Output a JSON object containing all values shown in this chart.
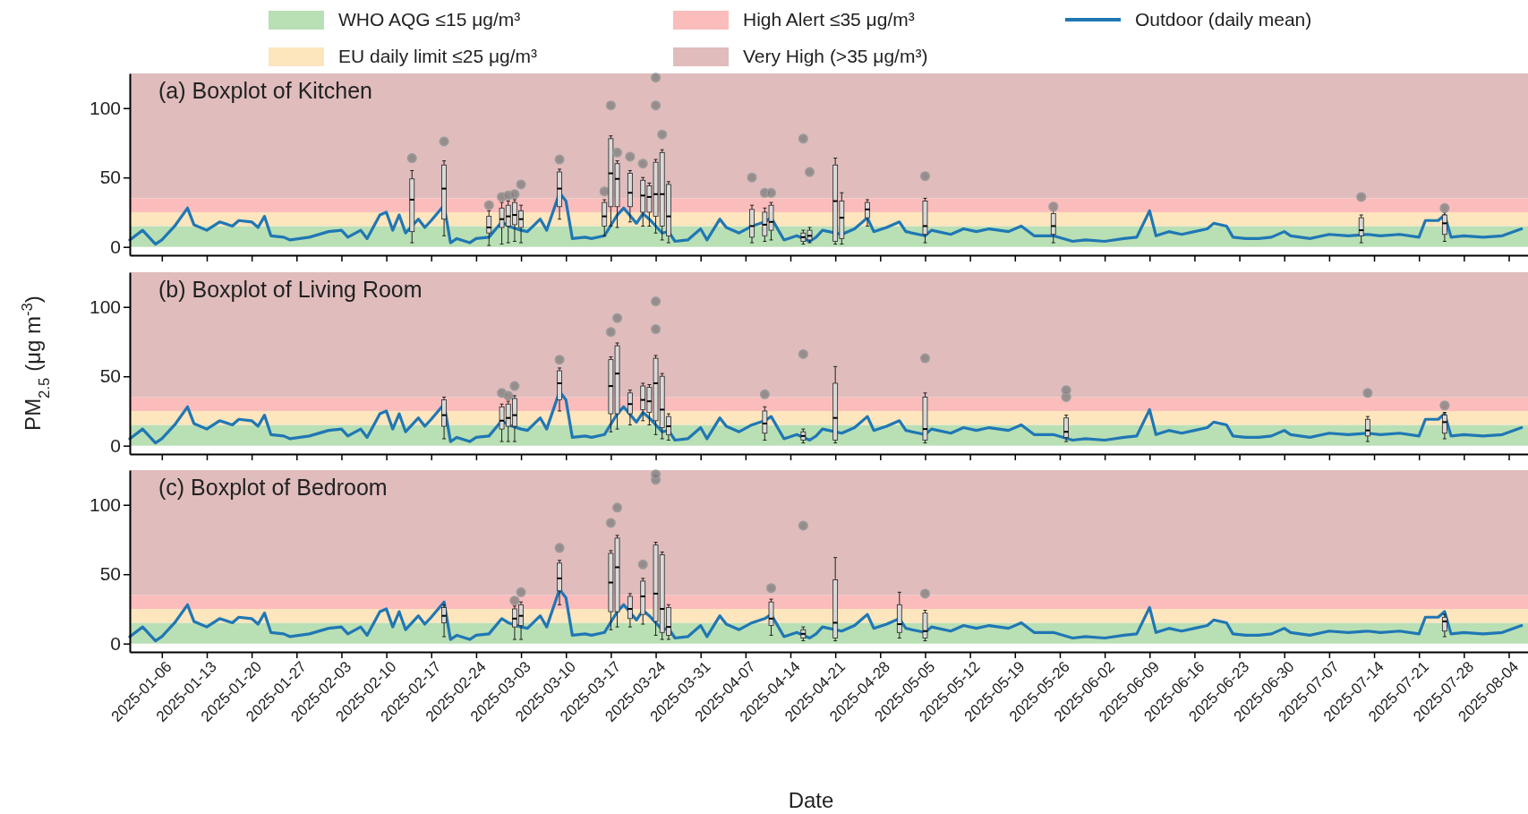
{
  "chart_data": [
    {
      "type": "box",
      "title": "(a) Boxplot of Kitchen",
      "xlim": [
        "2025-01-01",
        "2025-08-07"
      ],
      "xticks": [
        "2025-01-06",
        "2025-01-13",
        "2025-01-20",
        "2025-01-27",
        "2025-02-03",
        "2025-02-10",
        "2025-02-17",
        "2025-02-24",
        "2025-03-03",
        "2025-03-10",
        "2025-03-17",
        "2025-03-24",
        "2025-03-31",
        "2025-04-07",
        "2025-04-14",
        "2025-04-21",
        "2025-04-28",
        "2025-05-05",
        "2025-05-12",
        "2025-05-19",
        "2025-05-26",
        "2025-06-02",
        "2025-06-09",
        "2025-06-16",
        "2025-06-23",
        "2025-06-30",
        "2025-07-07",
        "2025-07-14",
        "2025-07-21",
        "2025-07-28",
        "2025-08-04"
      ],
      "ylim": [
        -6,
        125
      ],
      "yticks": [
        0,
        50,
        100
      ],
      "tick_labels": "y",
      "legend": "top",
      "bands": [
        {
          "axis": "y",
          "from": 0,
          "to": 15,
          "label": "WHO AQG ≤15 μg/m³",
          "color": "#b9dfb5"
        },
        {
          "axis": "y",
          "from": 15,
          "to": 25,
          "label": "EU daily limit ≤25 μg/m³",
          "color": "#fde5bd"
        },
        {
          "axis": "y",
          "from": 25,
          "to": 35,
          "label": "High Alert ≤35 μg/m³",
          "color": "#fbbcbc"
        },
        {
          "axis": "y",
          "from": 35,
          "to": 125,
          "label": "Very High (>35 μg/m³)",
          "color": "#e0bcbc"
        }
      ],
      "series": [
        {
          "color": "#d9d9d9",
          "x": [
            "2025-02-14",
            "2025-02-19",
            "2025-02-26",
            "2025-02-28",
            "2025-03-01",
            "2025-03-02",
            "2025-03-03",
            "2025-03-09",
            "2025-03-16",
            "2025-03-17",
            "2025-03-18",
            "2025-03-20",
            "2025-03-22",
            "2025-03-23",
            "2025-03-24",
            "2025-03-25",
            "2025-03-26",
            "2025-04-08",
            "2025-04-10",
            "2025-04-11",
            "2025-04-16",
            "2025-04-17",
            "2025-04-21",
            "2025-04-22",
            "2025-04-26",
            "2025-05-05",
            "2025-05-25",
            "2025-07-12",
            "2025-07-25"
          ],
          "boxes": [
            {
              "low": 3,
              "q1": 11,
              "median": 34,
              "q3": 49,
              "high": 55,
              "outliers": [
                64
              ]
            },
            {
              "low": 8,
              "q1": 20,
              "median": 42,
              "q3": 59,
              "high": 62,
              "outliers": [
                76
              ]
            },
            {
              "low": 1,
              "q1": 10,
              "median": 14,
              "q3": 22,
              "high": 26,
              "outliers": [
                30
              ]
            },
            {
              "low": 2,
              "q1": 14,
              "median": 20,
              "q3": 28,
              "high": 32,
              "outliers": [
                36
              ]
            },
            {
              "low": 3,
              "q1": 15,
              "median": 22,
              "q3": 30,
              "high": 33,
              "outliers": [
                37
              ]
            },
            {
              "low": 4,
              "q1": 16,
              "median": 23,
              "q3": 32,
              "high": 34,
              "outliers": [
                38
              ]
            },
            {
              "low": 3,
              "q1": 14,
              "median": 20,
              "q3": 26,
              "high": 30,
              "outliers": [
                45
              ]
            },
            {
              "low": 20,
              "q1": 29,
              "median": 42,
              "q3": 54,
              "high": 56,
              "outliers": [
                63
              ]
            },
            {
              "low": 8,
              "q1": 15,
              "median": 22,
              "q3": 32,
              "high": 34,
              "outliers": [
                40
              ]
            },
            {
              "low": 15,
              "q1": 29,
              "median": 53,
              "q3": 78,
              "high": 80,
              "outliers": [
                102
              ]
            },
            {
              "low": 14,
              "q1": 29,
              "median": 49,
              "q3": 60,
              "high": 62,
              "outliers": [
                68
              ]
            },
            {
              "low": 18,
              "q1": 29,
              "median": 39,
              "q3": 53,
              "high": 55,
              "outliers": [
                65
              ]
            },
            {
              "low": 15,
              "q1": 25,
              "median": 37,
              "q3": 48,
              "high": 50,
              "outliers": [
                60
              ]
            },
            {
              "low": 15,
              "q1": 25,
              "median": 36,
              "q3": 44,
              "high": 46
            },
            {
              "low": 10,
              "q1": 22,
              "median": 38,
              "q3": 61,
              "high": 63,
              "outliers": [
                102,
                122
              ]
            },
            {
              "low": 5,
              "q1": 15,
              "median": 38,
              "q3": 68,
              "high": 70,
              "outliers": [
                81
              ]
            },
            {
              "low": 3,
              "q1": 8,
              "median": 22,
              "q3": 45,
              "high": 47
            },
            {
              "low": 3,
              "q1": 7,
              "median": 15,
              "q3": 27,
              "high": 30,
              "outliers": [
                50
              ]
            },
            {
              "low": 4,
              "q1": 8,
              "median": 16,
              "q3": 25,
              "high": 28,
              "outliers": [
                39
              ]
            },
            {
              "low": 5,
              "q1": 12,
              "median": 18,
              "q3": 30,
              "high": 32,
              "outliers": [
                39
              ]
            },
            {
              "low": 2,
              "q1": 4,
              "median": 7,
              "q3": 10,
              "high": 12,
              "outliers": [
                78
              ]
            },
            {
              "low": 3,
              "q1": 5,
              "median": 8,
              "q3": 12,
              "high": 14,
              "outliers": [
                54
              ]
            },
            {
              "low": 2,
              "q1": 4,
              "median": 33,
              "q3": 59,
              "high": 64
            },
            {
              "low": 2,
              "q1": 6,
              "median": 21,
              "q3": 33,
              "high": 39
            },
            {
              "low": 15,
              "q1": 21,
              "median": 27,
              "q3": 32,
              "high": 34
            },
            {
              "low": 3,
              "q1": 9,
              "median": 15,
              "q3": 33,
              "high": 35,
              "outliers": [
                51
              ]
            },
            {
              "low": 3,
              "q1": 9,
              "median": 15,
              "q3": 24,
              "high": 26,
              "outliers": [
                29
              ]
            },
            {
              "low": 3,
              "q1": 8,
              "median": 12,
              "q3": 21,
              "high": 23,
              "outliers": [
                36
              ]
            },
            {
              "low": 4,
              "q1": 9,
              "median": 17,
              "q3": 23,
              "high": 25,
              "outliers": [
                28
              ]
            }
          ]
        },
        {
          "type": "line",
          "name": "Outdoor (daily mean)",
          "color": "#1f77b4",
          "x": [
            "2025-01-01",
            "2025-01-03",
            "2025-01-05",
            "2025-01-06",
            "2025-01-08",
            "2025-01-10",
            "2025-01-11",
            "2025-01-13",
            "2025-01-15",
            "2025-01-17",
            "2025-01-18",
            "2025-01-20",
            "2025-01-21",
            "2025-01-22",
            "2025-01-23",
            "2025-01-25",
            "2025-01-26",
            "2025-01-29",
            "2025-02-01",
            "2025-02-03",
            "2025-02-04",
            "2025-02-06",
            "2025-02-07",
            "2025-02-09",
            "2025-02-10",
            "2025-02-11",
            "2025-02-12",
            "2025-02-13",
            "2025-02-15",
            "2025-02-16",
            "2025-02-17",
            "2025-02-19",
            "2025-02-20",
            "2025-02-21",
            "2025-02-23",
            "2025-02-24",
            "2025-02-26",
            "2025-02-28",
            "2025-03-01",
            "2025-03-03",
            "2025-03-04",
            "2025-03-06",
            "2025-03-07",
            "2025-03-09",
            "2025-03-10",
            "2025-03-11",
            "2025-03-13",
            "2025-03-14",
            "2025-03-16",
            "2025-03-18",
            "2025-03-19",
            "2025-03-21",
            "2025-03-22",
            "2025-03-23",
            "2025-03-25",
            "2025-03-26",
            "2025-03-27",
            "2025-03-29",
            "2025-03-31",
            "2025-04-01",
            "2025-04-03",
            "2025-04-04",
            "2025-04-06",
            "2025-04-08",
            "2025-04-10",
            "2025-04-11",
            "2025-04-13",
            "2025-04-15",
            "2025-04-17",
            "2025-04-18",
            "2025-04-19",
            "2025-04-22",
            "2025-04-24",
            "2025-04-26",
            "2025-04-27",
            "2025-04-29",
            "2025-05-01",
            "2025-05-02",
            "2025-05-05",
            "2025-05-06",
            "2025-05-09",
            "2025-05-11",
            "2025-05-13",
            "2025-05-15",
            "2025-05-18",
            "2025-05-20",
            "2025-05-22",
            "2025-05-25",
            "2025-05-28",
            "2025-05-30",
            "2025-06-02",
            "2025-06-05",
            "2025-06-07",
            "2025-06-09",
            "2025-06-10",
            "2025-06-12",
            "2025-06-14",
            "2025-06-16",
            "2025-06-18",
            "2025-06-19",
            "2025-06-21",
            "2025-06-22",
            "2025-06-24",
            "2025-06-26",
            "2025-06-28",
            "2025-06-30",
            "2025-07-01",
            "2025-07-04",
            "2025-07-07",
            "2025-07-10",
            "2025-07-13",
            "2025-07-15",
            "2025-07-18",
            "2025-07-21",
            "2025-07-22",
            "2025-07-24",
            "2025-07-25",
            "2025-07-26",
            "2025-07-28",
            "2025-07-31",
            "2025-08-03",
            "2025-08-06"
          ],
          "values": [
            5,
            12,
            2,
            5,
            15,
            28,
            16,
            12,
            18,
            15,
            19,
            18,
            14,
            22,
            8,
            7,
            5,
            7,
            11,
            12,
            7,
            12,
            6,
            23,
            25,
            12,
            23,
            10,
            20,
            14,
            19,
            30,
            3,
            6,
            3,
            6,
            7,
            18,
            15,
            12,
            11,
            20,
            12,
            39,
            33,
            6,
            7,
            6,
            8,
            23,
            28,
            17,
            24,
            20,
            10,
            11,
            4,
            5,
            13,
            5,
            20,
            14,
            10,
            15,
            18,
            21,
            5,
            8,
            4,
            7,
            12,
            9,
            13,
            21,
            11,
            14,
            18,
            11,
            8,
            12,
            9,
            13,
            11,
            13,
            11,
            15,
            8,
            8,
            4,
            5,
            4,
            6,
            7,
            26,
            8,
            11,
            9,
            11,
            13,
            17,
            15,
            7,
            6,
            6,
            7,
            11,
            8,
            6,
            9,
            8,
            9,
            8,
            9,
            7,
            19,
            19,
            23,
            7,
            8,
            7,
            8,
            13
          ]
        }
      ]
    },
    {
      "type": "box",
      "title": "(b) Boxplot of Living Room",
      "ylabel": "PM$_{2.5}$ (μg m$^{-3}$)",
      "xlim": [
        "2025-01-01",
        "2025-08-07"
      ],
      "xticks": [
        "2025-01-06",
        "2025-01-13",
        "2025-01-20",
        "2025-01-27",
        "2025-02-03",
        "2025-02-10",
        "2025-02-17",
        "2025-02-24",
        "2025-03-03",
        "2025-03-10",
        "2025-03-17",
        "2025-03-24",
        "2025-03-31",
        "2025-04-07",
        "2025-04-14",
        "2025-04-21",
        "2025-04-28",
        "2025-05-05",
        "2025-05-12",
        "2025-05-19",
        "2025-05-26",
        "2025-06-02",
        "2025-06-09",
        "2025-06-16",
        "2025-06-23",
        "2025-06-30",
        "2025-07-07",
        "2025-07-14",
        "2025-07-21",
        "2025-07-28",
        "2025-08-04"
      ],
      "ylim": [
        -6,
        125
      ],
      "yticks": [
        0,
        50,
        100
      ],
      "tick_labels": "y",
      "bands": [
        {
          "axis": "y",
          "from": 0,
          "to": 15,
          "color": "#b9dfb5"
        },
        {
          "axis": "y",
          "from": 15,
          "to": 25,
          "color": "#fde5bd"
        },
        {
          "axis": "y",
          "from": 25,
          "to": 35,
          "color": "#fbbcbc"
        },
        {
          "axis": "y",
          "from": 35,
          "to": 125,
          "color": "#e0bcbc"
        }
      ],
      "series": [
        {
          "color": "#d9d9d9",
          "x": [
            "2025-02-19",
            "2025-02-28",
            "2025-03-01",
            "2025-03-02",
            "2025-03-09",
            "2025-03-17",
            "2025-03-18",
            "2025-03-20",
            "2025-03-22",
            "2025-03-23",
            "2025-03-24",
            "2025-03-25",
            "2025-03-26",
            "2025-04-10",
            "2025-04-16",
            "2025-04-21",
            "2025-05-05",
            "2025-05-27",
            "2025-07-13",
            "2025-07-25"
          ],
          "boxes": [
            {
              "low": 5,
              "q1": 14,
              "median": 22,
              "q3": 33,
              "high": 35
            },
            {
              "low": 3,
              "q1": 12,
              "median": 18,
              "q3": 28,
              "high": 30,
              "outliers": [
                38
              ]
            },
            {
              "low": 3,
              "q1": 14,
              "median": 20,
              "q3": 30,
              "high": 32,
              "outliers": [
                36
              ]
            },
            {
              "low": 3,
              "q1": 14,
              "median": 22,
              "q3": 34,
              "high": 36,
              "outliers": [
                43
              ]
            },
            {
              "low": 25,
              "q1": 33,
              "median": 45,
              "q3": 54,
              "high": 56,
              "outliers": [
                62
              ]
            },
            {
              "low": 10,
              "q1": 23,
              "median": 43,
              "q3": 62,
              "high": 64,
              "outliers": [
                82
              ]
            },
            {
              "low": 12,
              "q1": 23,
              "median": 52,
              "q3": 72,
              "high": 74,
              "outliers": [
                92
              ]
            },
            {
              "low": 15,
              "q1": 23,
              "median": 30,
              "q3": 38,
              "high": 40
            },
            {
              "low": 18,
              "q1": 26,
              "median": 33,
              "q3": 43,
              "high": 45
            },
            {
              "low": 15,
              "q1": 24,
              "median": 32,
              "q3": 42,
              "high": 44
            },
            {
              "low": 8,
              "q1": 18,
              "median": 45,
              "q3": 63,
              "high": 65,
              "outliers": [
                84,
                104
              ]
            },
            {
              "low": 5,
              "q1": 13,
              "median": 26,
              "q3": 50,
              "high": 52
            },
            {
              "low": 4,
              "q1": 8,
              "median": 14,
              "q3": 21,
              "high": 23
            },
            {
              "low": 4,
              "q1": 9,
              "median": 16,
              "q3": 25,
              "high": 28,
              "outliers": [
                37
              ]
            },
            {
              "low": 2,
              "q1": 4,
              "median": 7,
              "q3": 10,
              "high": 12,
              "outliers": [
                66
              ]
            },
            {
              "low": 2,
              "q1": 4,
              "median": 20,
              "q3": 45,
              "high": 57
            },
            {
              "low": 2,
              "q1": 4,
              "median": 12,
              "q3": 35,
              "high": 38,
              "outliers": [
                63
              ]
            },
            {
              "low": 3,
              "q1": 6,
              "median": 10,
              "q3": 20,
              "high": 22,
              "outliers": [
                35,
                40
              ]
            },
            {
              "low": 3,
              "q1": 7,
              "median": 11,
              "q3": 19,
              "high": 21,
              "outliers": [
                38
              ]
            },
            {
              "low": 5,
              "q1": 9,
              "median": 17,
              "q3": 22,
              "high": 24,
              "outliers": [
                29
              ]
            }
          ]
        },
        {
          "type": "line",
          "color": "#1f77b4",
          "x": [
            "2025-01-01",
            "2025-01-03",
            "2025-01-05",
            "2025-01-06",
            "2025-01-08",
            "2025-01-10",
            "2025-01-11",
            "2025-01-13",
            "2025-01-15",
            "2025-01-17",
            "2025-01-18",
            "2025-01-20",
            "2025-01-21",
            "2025-01-22",
            "2025-01-23",
            "2025-01-25",
            "2025-01-26",
            "2025-01-29",
            "2025-02-01",
            "2025-02-03",
            "2025-02-04",
            "2025-02-06",
            "2025-02-07",
            "2025-02-09",
            "2025-02-10",
            "2025-02-11",
            "2025-02-12",
            "2025-02-13",
            "2025-02-15",
            "2025-02-16",
            "2025-02-17",
            "2025-02-19",
            "2025-02-20",
            "2025-02-21",
            "2025-02-23",
            "2025-02-24",
            "2025-02-26",
            "2025-02-28",
            "2025-03-01",
            "2025-03-03",
            "2025-03-04",
            "2025-03-06",
            "2025-03-07",
            "2025-03-09",
            "2025-03-10",
            "2025-03-11",
            "2025-03-13",
            "2025-03-14",
            "2025-03-16",
            "2025-03-18",
            "2025-03-19",
            "2025-03-21",
            "2025-03-22",
            "2025-03-23",
            "2025-03-25",
            "2025-03-26",
            "2025-03-27",
            "2025-03-29",
            "2025-03-31",
            "2025-04-01",
            "2025-04-03",
            "2025-04-04",
            "2025-04-06",
            "2025-04-08",
            "2025-04-10",
            "2025-04-11",
            "2025-04-13",
            "2025-04-15",
            "2025-04-17",
            "2025-04-18",
            "2025-04-19",
            "2025-04-22",
            "2025-04-24",
            "2025-04-26",
            "2025-04-27",
            "2025-04-29",
            "2025-05-01",
            "2025-05-02",
            "2025-05-05",
            "2025-05-06",
            "2025-05-09",
            "2025-05-11",
            "2025-05-13",
            "2025-05-15",
            "2025-05-18",
            "2025-05-20",
            "2025-05-22",
            "2025-05-25",
            "2025-05-28",
            "2025-05-30",
            "2025-06-02",
            "2025-06-05",
            "2025-06-07",
            "2025-06-09",
            "2025-06-10",
            "2025-06-12",
            "2025-06-14",
            "2025-06-16",
            "2025-06-18",
            "2025-06-19",
            "2025-06-21",
            "2025-06-22",
            "2025-06-24",
            "2025-06-26",
            "2025-06-28",
            "2025-06-30",
            "2025-07-01",
            "2025-07-04",
            "2025-07-07",
            "2025-07-10",
            "2025-07-13",
            "2025-07-15",
            "2025-07-18",
            "2025-07-21",
            "2025-07-22",
            "2025-07-24",
            "2025-07-25",
            "2025-07-26",
            "2025-07-28",
            "2025-07-31",
            "2025-08-03",
            "2025-08-06"
          ],
          "values": [
            5,
            12,
            2,
            5,
            15,
            28,
            16,
            12,
            18,
            15,
            19,
            18,
            14,
            22,
            8,
            7,
            5,
            7,
            11,
            12,
            7,
            12,
            6,
            23,
            25,
            12,
            23,
            10,
            20,
            14,
            19,
            30,
            3,
            6,
            3,
            6,
            7,
            18,
            15,
            12,
            11,
            20,
            12,
            39,
            33,
            6,
            7,
            6,
            8,
            23,
            28,
            17,
            24,
            20,
            10,
            11,
            4,
            5,
            13,
            5,
            20,
            14,
            10,
            15,
            18,
            21,
            5,
            8,
            4,
            7,
            12,
            9,
            13,
            21,
            11,
            14,
            18,
            11,
            8,
            12,
            9,
            13,
            11,
            13,
            11,
            15,
            8,
            8,
            4,
            5,
            4,
            6,
            7,
            26,
            8,
            11,
            9,
            11,
            13,
            17,
            15,
            7,
            6,
            6,
            7,
            11,
            8,
            6,
            9,
            8,
            9,
            8,
            9,
            7,
            19,
            19,
            23,
            7,
            8,
            7,
            8,
            13
          ]
        }
      ]
    },
    {
      "type": "box",
      "title": "(c) Boxplot of Bedroom",
      "xlabel": "Date",
      "xlim": [
        "2025-01-01",
        "2025-08-07"
      ],
      "xticks": [
        "2025-01-06",
        "2025-01-13",
        "2025-01-20",
        "2025-01-27",
        "2025-02-03",
        "2025-02-10",
        "2025-02-17",
        "2025-02-24",
        "2025-03-03",
        "2025-03-10",
        "2025-03-17",
        "2025-03-24",
        "2025-03-31",
        "2025-04-07",
        "2025-04-14",
        "2025-04-21",
        "2025-04-28",
        "2025-05-05",
        "2025-05-12",
        "2025-05-19",
        "2025-05-26",
        "2025-06-02",
        "2025-06-09",
        "2025-06-16",
        "2025-06-23",
        "2025-06-30",
        "2025-07-07",
        "2025-07-14",
        "2025-07-21",
        "2025-07-28",
        "2025-08-04"
      ],
      "ylim": [
        -6,
        125
      ],
      "yticks": [
        0,
        50,
        100
      ],
      "bands": [
        {
          "axis": "y",
          "from": 0,
          "to": 15,
          "color": "#b9dfb5"
        },
        {
          "axis": "y",
          "from": 15,
          "to": 25,
          "color": "#fde5bd"
        },
        {
          "axis": "y",
          "from": 25,
          "to": 35,
          "color": "#fbbcbc"
        },
        {
          "axis": "y",
          "from": 35,
          "to": 125,
          "color": "#e0bcbc"
        }
      ],
      "series": [
        {
          "color": "#d9d9d9",
          "x": [
            "2025-02-19",
            "2025-03-02",
            "2025-03-03",
            "2025-03-09",
            "2025-03-17",
            "2025-03-18",
            "2025-03-20",
            "2025-03-22",
            "2025-03-24",
            "2025-03-25",
            "2025-03-26",
            "2025-04-11",
            "2025-04-16",
            "2025-04-21",
            "2025-05-01",
            "2025-05-05",
            "2025-07-25"
          ],
          "boxes": [
            {
              "low": 5,
              "q1": 15,
              "median": 20,
              "q3": 26,
              "high": 28
            },
            {
              "low": 3,
              "q1": 12,
              "median": 18,
              "q3": 25,
              "high": 27,
              "outliers": [
                31
              ]
            },
            {
              "low": 3,
              "q1": 13,
              "median": 20,
              "q3": 28,
              "high": 30,
              "outliers": [
                37
              ]
            },
            {
              "low": 28,
              "q1": 38,
              "median": 47,
              "q3": 58,
              "high": 60,
              "outliers": [
                69
              ]
            },
            {
              "low": 10,
              "q1": 23,
              "median": 44,
              "q3": 65,
              "high": 67,
              "outliers": [
                87
              ]
            },
            {
              "low": 12,
              "q1": 23,
              "median": 55,
              "q3": 76,
              "high": 78,
              "outliers": [
                98
              ]
            },
            {
              "low": 12,
              "q1": 18,
              "median": 25,
              "q3": 34,
              "high": 36
            },
            {
              "low": 14,
              "q1": 21,
              "median": 34,
              "q3": 45,
              "high": 47,
              "outliers": [
                57
              ]
            },
            {
              "low": 6,
              "q1": 16,
              "median": 36,
              "q3": 71,
              "high": 73,
              "outliers": [
                118,
                122
              ]
            },
            {
              "low": 3,
              "q1": 8,
              "median": 25,
              "q3": 64,
              "high": 66
            },
            {
              "low": 3,
              "q1": 6,
              "median": 12,
              "q3": 26,
              "high": 28
            },
            {
              "low": 6,
              "q1": 13,
              "median": 18,
              "q3": 30,
              "high": 32,
              "outliers": [
                40
              ]
            },
            {
              "low": 2,
              "q1": 4,
              "median": 7,
              "q3": 10,
              "high": 12,
              "outliers": [
                85
              ]
            },
            {
              "low": 2,
              "q1": 4,
              "median": 15,
              "q3": 46,
              "high": 62
            },
            {
              "low": 4,
              "q1": 8,
              "median": 14,
              "q3": 28,
              "high": 37
            },
            {
              "low": 2,
              "q1": 4,
              "median": 9,
              "q3": 22,
              "high": 24,
              "outliers": [
                36
              ]
            },
            {
              "low": 5,
              "q1": 9,
              "median": 16,
              "q3": 19,
              "high": 21
            }
          ]
        },
        {
          "type": "line",
          "color": "#1f77b4",
          "x": [
            "2025-01-01",
            "2025-01-03",
            "2025-01-05",
            "2025-01-06",
            "2025-01-08",
            "2025-01-10",
            "2025-01-11",
            "2025-01-13",
            "2025-01-15",
            "2025-01-17",
            "2025-01-18",
            "2025-01-20",
            "2025-01-21",
            "2025-01-22",
            "2025-01-23",
            "2025-01-25",
            "2025-01-26",
            "2025-01-29",
            "2025-02-01",
            "2025-02-03",
            "2025-02-04",
            "2025-02-06",
            "2025-02-07",
            "2025-02-09",
            "2025-02-10",
            "2025-02-11",
            "2025-02-12",
            "2025-02-13",
            "2025-02-15",
            "2025-02-16",
            "2025-02-17",
            "2025-02-19",
            "2025-02-20",
            "2025-02-21",
            "2025-02-23",
            "2025-02-24",
            "2025-02-26",
            "2025-02-28",
            "2025-03-01",
            "2025-03-03",
            "2025-03-04",
            "2025-03-06",
            "2025-03-07",
            "2025-03-09",
            "2025-03-10",
            "2025-03-11",
            "2025-03-13",
            "2025-03-14",
            "2025-03-16",
            "2025-03-18",
            "2025-03-19",
            "2025-03-21",
            "2025-03-22",
            "2025-03-23",
            "2025-03-25",
            "2025-03-26",
            "2025-03-27",
            "2025-03-29",
            "2025-03-31",
            "2025-04-01",
            "2025-04-03",
            "2025-04-04",
            "2025-04-06",
            "2025-04-08",
            "2025-04-10",
            "2025-04-11",
            "2025-04-13",
            "2025-04-15",
            "2025-04-17",
            "2025-04-18",
            "2025-04-19",
            "2025-04-22",
            "2025-04-24",
            "2025-04-26",
            "2025-04-27",
            "2025-04-29",
            "2025-05-01",
            "2025-05-02",
            "2025-05-05",
            "2025-05-06",
            "2025-05-09",
            "2025-05-11",
            "2025-05-13",
            "2025-05-15",
            "2025-05-18",
            "2025-05-20",
            "2025-05-22",
            "2025-05-25",
            "2025-05-28",
            "2025-05-30",
            "2025-06-02",
            "2025-06-05",
            "2025-06-07",
            "2025-06-09",
            "2025-06-10",
            "2025-06-12",
            "2025-06-14",
            "2025-06-16",
            "2025-06-18",
            "2025-06-19",
            "2025-06-21",
            "2025-06-22",
            "2025-06-24",
            "2025-06-26",
            "2025-06-28",
            "2025-06-30",
            "2025-07-01",
            "2025-07-04",
            "2025-07-07",
            "2025-07-10",
            "2025-07-13",
            "2025-07-15",
            "2025-07-18",
            "2025-07-21",
            "2025-07-22",
            "2025-07-24",
            "2025-07-25",
            "2025-07-26",
            "2025-07-28",
            "2025-07-31",
            "2025-08-03",
            "2025-08-06"
          ],
          "values": [
            5,
            12,
            2,
            5,
            15,
            28,
            16,
            12,
            18,
            15,
            19,
            18,
            14,
            22,
            8,
            7,
            5,
            7,
            11,
            12,
            7,
            12,
            6,
            23,
            25,
            12,
            23,
            10,
            20,
            14,
            19,
            30,
            3,
            6,
            3,
            6,
            7,
            18,
            15,
            12,
            11,
            20,
            12,
            39,
            33,
            6,
            7,
            6,
            8,
            23,
            28,
            17,
            24,
            20,
            10,
            11,
            4,
            5,
            13,
            5,
            20,
            14,
            10,
            15,
            18,
            21,
            5,
            8,
            4,
            7,
            12,
            9,
            13,
            21,
            11,
            14,
            18,
            11,
            8,
            12,
            9,
            13,
            11,
            13,
            11,
            15,
            8,
            8,
            4,
            5,
            4,
            6,
            7,
            26,
            8,
            11,
            9,
            11,
            13,
            17,
            15,
            7,
            6,
            6,
            7,
            11,
            8,
            6,
            9,
            8,
            9,
            8,
            9,
            7,
            19,
            19,
            23,
            7,
            8,
            7,
            8,
            13
          ]
        }
      ]
    }
  ]
}
